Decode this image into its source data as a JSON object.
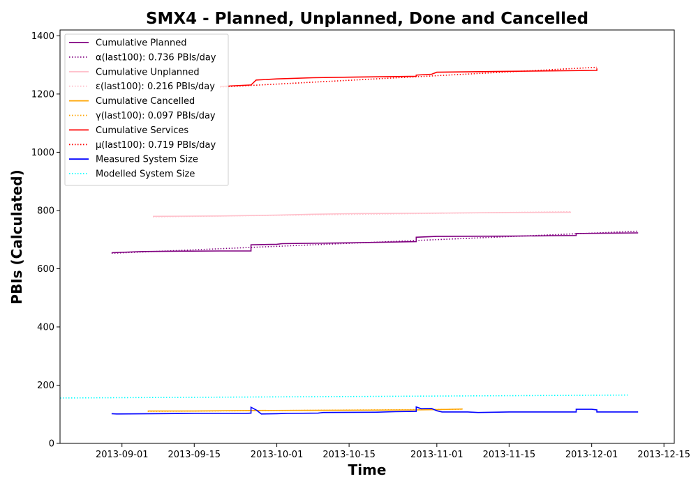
{
  "chart_data": {
    "type": "line",
    "title": "SMX4 - Planned, Unplanned, Done  and Cancelled",
    "xlabel": "Time",
    "ylabel": "PBIs (Calculated)",
    "xlim": [
      "2013-08-20",
      "2013-12-17"
    ],
    "ylim": [
      0,
      1420
    ],
    "x_ticks": [
      "2013-09-01",
      "2013-09-15",
      "2013-10-01",
      "2013-10-15",
      "2013-11-01",
      "2013-11-15",
      "2013-12-01",
      "2013-12-15"
    ],
    "y_ticks": [
      0,
      200,
      400,
      600,
      800,
      1000,
      1200,
      1400
    ],
    "grid": false,
    "legend_position": "top-left",
    "series": [
      {
        "name": "Cumulative Planned",
        "color": "#800080",
        "style": "solid",
        "points": [
          [
            "2013-08-30",
            655
          ],
          [
            "2013-09-05",
            659
          ],
          [
            "2013-09-10",
            660
          ],
          [
            "2013-09-20",
            661
          ],
          [
            "2013-09-26",
            661
          ],
          [
            "2013-09-26",
            682
          ],
          [
            "2013-10-01",
            684
          ],
          [
            "2013-10-02",
            686
          ],
          [
            "2013-10-15",
            689
          ],
          [
            "2013-10-28",
            693
          ],
          [
            "2013-10-28",
            708
          ],
          [
            "2013-11-01",
            711
          ],
          [
            "2013-11-15",
            712
          ],
          [
            "2013-11-28",
            714
          ],
          [
            "2013-11-28",
            721
          ],
          [
            "2013-12-10",
            723
          ]
        ]
      },
      {
        "name": "α(last100): 0.736 PBIs/day",
        "color": "#800080",
        "style": "dotted",
        "points": [
          [
            "2013-08-30",
            653
          ],
          [
            "2013-12-10",
            729
          ]
        ]
      },
      {
        "name": "Cumulative Unplanned",
        "color": "#ffc0cb",
        "style": "solid",
        "points": [
          [
            "2013-09-07",
            780
          ],
          [
            "2013-09-20",
            781
          ],
          [
            "2013-10-01",
            784
          ],
          [
            "2013-10-08",
            787
          ],
          [
            "2013-10-15",
            789
          ],
          [
            "2013-11-01",
            791
          ],
          [
            "2013-11-15",
            793
          ],
          [
            "2013-11-27",
            794
          ]
        ]
      },
      {
        "name": "ε(last100): 0.216 PBIs/day",
        "color": "#ffc0cb",
        "style": "dotted",
        "points": [
          [
            "2013-09-07",
            778
          ],
          [
            "2013-11-27",
            796
          ]
        ]
      },
      {
        "name": "Cumulative Cancelled",
        "color": "#ffa500",
        "style": "solid",
        "points": [
          [
            "2013-09-06",
            111
          ],
          [
            "2013-09-15",
            111
          ],
          [
            "2013-09-26",
            113
          ],
          [
            "2013-10-15",
            114
          ],
          [
            "2013-10-28",
            115
          ],
          [
            "2013-11-01",
            116
          ],
          [
            "2013-11-06",
            118
          ]
        ]
      },
      {
        "name": "γ(last100): 0.097 PBIs/day",
        "color": "#ffa500",
        "style": "dotted",
        "points": [
          [
            "2013-09-06",
            110
          ],
          [
            "2013-11-06",
            117
          ]
        ]
      },
      {
        "name": "Cumulative Services",
        "color": "#ff0000",
        "style": "solid",
        "points": [
          [
            "2013-09-20",
            1226
          ],
          [
            "2013-09-26",
            1231
          ],
          [
            "2013-09-27",
            1248
          ],
          [
            "2013-10-01",
            1252
          ],
          [
            "2013-10-08",
            1256
          ],
          [
            "2013-10-15",
            1258
          ],
          [
            "2013-10-28",
            1261
          ],
          [
            "2013-10-28",
            1265
          ],
          [
            "2013-10-31",
            1268
          ],
          [
            "2013-11-01",
            1275
          ],
          [
            "2013-11-15",
            1278
          ],
          [
            "2013-12-02",
            1281
          ],
          [
            "2013-12-02",
            1288
          ]
        ]
      },
      {
        "name": "μ(last100): 0.719 PBIs/day",
        "color": "#ff0000",
        "style": "dotted",
        "points": [
          [
            "2013-09-20",
            1224
          ],
          [
            "2013-12-02",
            1292
          ]
        ]
      },
      {
        "name": "Measured System Size",
        "color": "#0000ff",
        "style": "solid",
        "points": [
          [
            "2013-08-30",
            102
          ],
          [
            "2013-08-31",
            101
          ],
          [
            "2013-09-15",
            103
          ],
          [
            "2013-09-25",
            103
          ],
          [
            "2013-09-26",
            104
          ],
          [
            "2013-09-26",
            124
          ],
          [
            "2013-09-27",
            115
          ],
          [
            "2013-09-28",
            101
          ],
          [
            "2013-10-01",
            102
          ],
          [
            "2013-10-03",
            103
          ],
          [
            "2013-10-09",
            104
          ],
          [
            "2013-10-10",
            106
          ],
          [
            "2013-10-20",
            107
          ],
          [
            "2013-10-24",
            109
          ],
          [
            "2013-10-28",
            110
          ],
          [
            "2013-10-28",
            125
          ],
          [
            "2013-10-29",
            119
          ],
          [
            "2013-10-31",
            120
          ],
          [
            "2013-11-01",
            112
          ],
          [
            "2013-11-02",
            108
          ],
          [
            "2013-11-07",
            108
          ],
          [
            "2013-11-09",
            106
          ],
          [
            "2013-11-15",
            108
          ],
          [
            "2013-11-27",
            108
          ],
          [
            "2013-11-28",
            108
          ],
          [
            "2013-11-28",
            117
          ],
          [
            "2013-12-01",
            117
          ],
          [
            "2013-12-02",
            115
          ],
          [
            "2013-12-02",
            108
          ],
          [
            "2013-12-10",
            108
          ]
        ]
      },
      {
        "name": "Modelled System Size",
        "color": "#00ffff",
        "style": "dotted",
        "points": [
          [
            "2013-08-20",
            156
          ],
          [
            "2013-12-08",
            166
          ]
        ]
      }
    ]
  }
}
